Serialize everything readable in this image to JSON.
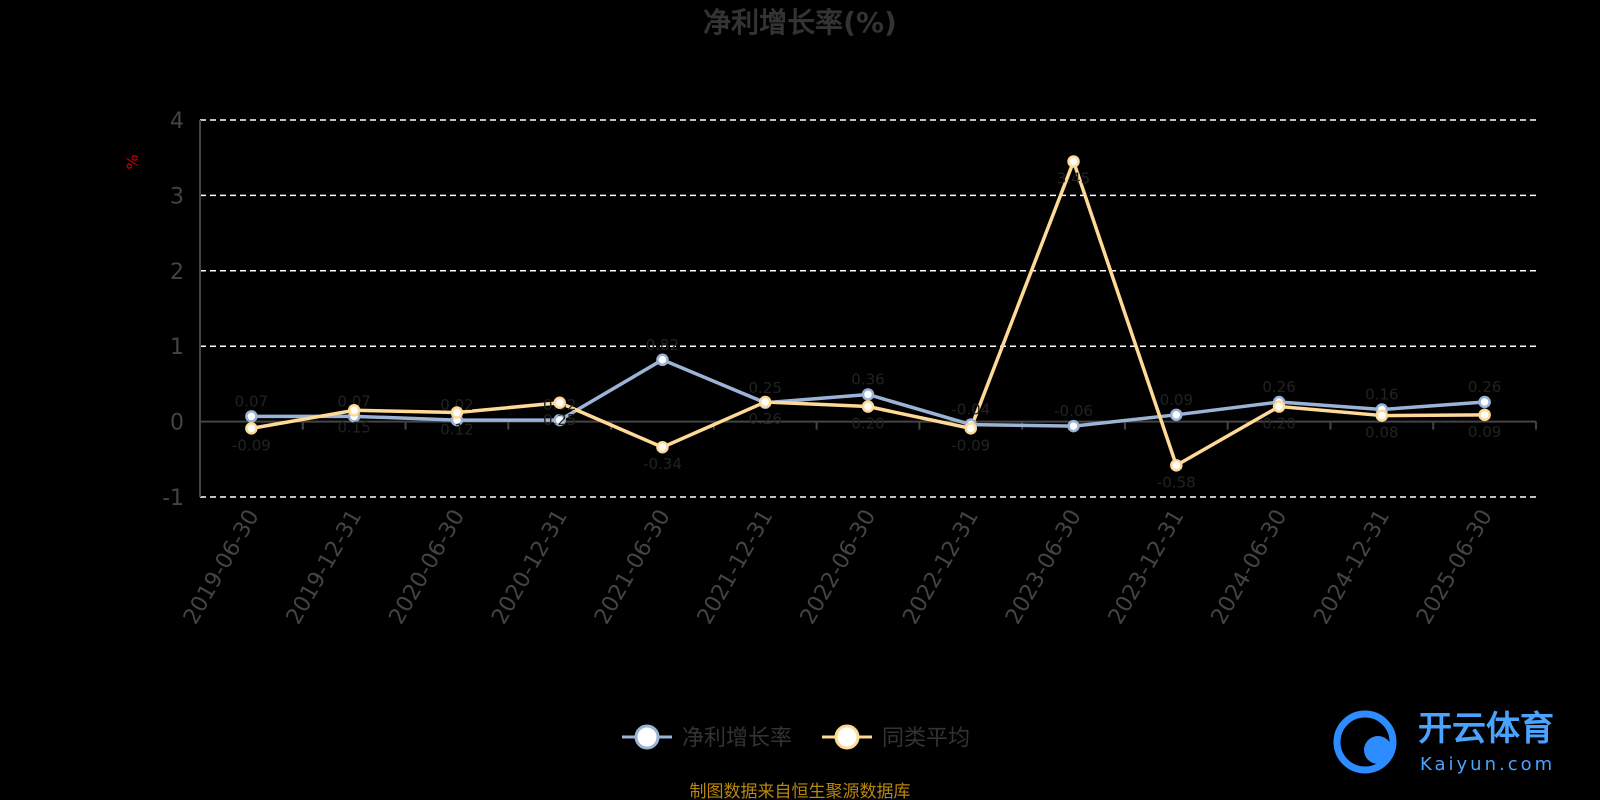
{
  "chart_data": {
    "type": "line",
    "title": "净利增长率(%)",
    "ylabel": "%",
    "ylim": [
      -1,
      4
    ],
    "yticks": [
      -1,
      0,
      1,
      2,
      3,
      4
    ],
    "grid": true,
    "legend_position": "bottom",
    "categories": [
      "2019-06-30",
      "2019-12-31",
      "2020-06-30",
      "2020-12-31",
      "2021-06-30",
      "2021-12-31",
      "2022-06-30",
      "2022-12-31",
      "2023-06-30",
      "2023-12-31",
      "2024-06-30",
      "2024-12-31",
      "2025-06-30"
    ],
    "series": [
      {
        "name": "净利增长率",
        "color": "#9ab3d6",
        "values": [
          0.07,
          0.07,
          0.02,
          0.02,
          0.82,
          0.25,
          0.36,
          -0.04,
          -0.06,
          0.09,
          0.26,
          0.16,
          0.26
        ]
      },
      {
        "name": "同类平均",
        "color": "#ffd996",
        "values": [
          -0.09,
          0.15,
          0.12,
          0.25,
          -0.34,
          0.26,
          0.2,
          -0.09,
          3.45,
          -0.58,
          0.2,
          0.08,
          0.09
        ]
      }
    ]
  },
  "footer": {
    "source": "制图数据来自恒生聚源数据库"
  },
  "watermark": {
    "name": "开云体育",
    "domain": "Kaiyun.com"
  }
}
